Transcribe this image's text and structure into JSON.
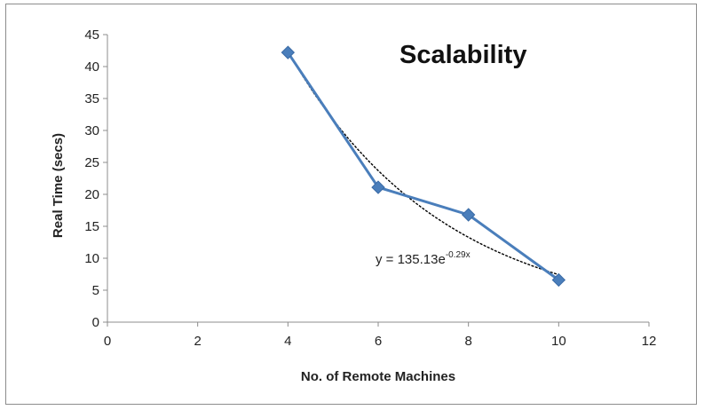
{
  "chart_data": {
    "type": "scatter",
    "title": "Scalability",
    "xlabel": "No. of Remote Machines",
    "ylabel": "Real Time (secs)",
    "xlim": [
      0,
      12
    ],
    "ylim": [
      0,
      45
    ],
    "x_ticks": [
      0,
      2,
      4,
      6,
      8,
      10,
      12
    ],
    "y_ticks": [
      0,
      5,
      10,
      15,
      20,
      25,
      30,
      35,
      40,
      45
    ],
    "grid": false,
    "legend": "none",
    "series": [
      {
        "x": [
          4,
          6,
          8,
          10
        ],
        "y": [
          42.2,
          21.1,
          16.8,
          6.6
        ],
        "color": "#4a7ebb",
        "marker": "diamond",
        "line": "solid"
      }
    ],
    "trendline": {
      "type": "exponential",
      "a": 135.13,
      "b": -0.29,
      "x_range": [
        4,
        10
      ],
      "color": "#000000",
      "style": "dashed",
      "equation": {
        "prefix": "y = 135.13e",
        "exponent": "-0.29x"
      }
    }
  }
}
